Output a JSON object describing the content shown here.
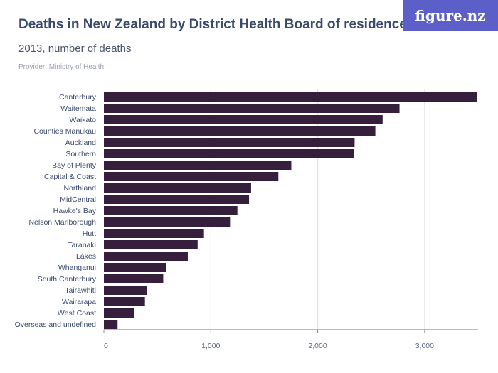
{
  "header": {
    "title": "Deaths in New Zealand by District Health Board of residence",
    "subtitle": "2013, number of deaths",
    "provider": "Provider: Ministry of Health",
    "logo": "figure.nz"
  },
  "colors": {
    "bar": "#361f3d",
    "logo_bg": "#5b5fc7",
    "grid": "#dddddd"
  },
  "chart_data": {
    "type": "bar",
    "orientation": "horizontal",
    "categories": [
      "Canterbury",
      "Waitemata",
      "Waikato",
      "Counties Manukau",
      "Auckland",
      "Southern",
      "Bay of Plenty",
      "Capital & Coast",
      "Northland",
      "MidCentral",
      "Hawke's Bay",
      "Nelson Marlborough",
      "Hutt",
      "Taranaki",
      "Lakes",
      "Whanganui",
      "South Canterbury",
      "Tairawhiti",
      "Wairarapa",
      "West Coast",
      "Overseas and undefined"
    ],
    "values": [
      3489,
      2765,
      2607,
      2539,
      2345,
      2342,
      1753,
      1632,
      1377,
      1358,
      1249,
      1180,
      936,
      877,
      785,
      584,
      555,
      400,
      384,
      285,
      128
    ],
    "xlim": [
      0,
      3500
    ],
    "xticks": [
      0,
      1000,
      2000,
      3000
    ],
    "xtick_labels": [
      "0",
      "1,000",
      "2,000",
      "3,000"
    ],
    "grid": true
  }
}
